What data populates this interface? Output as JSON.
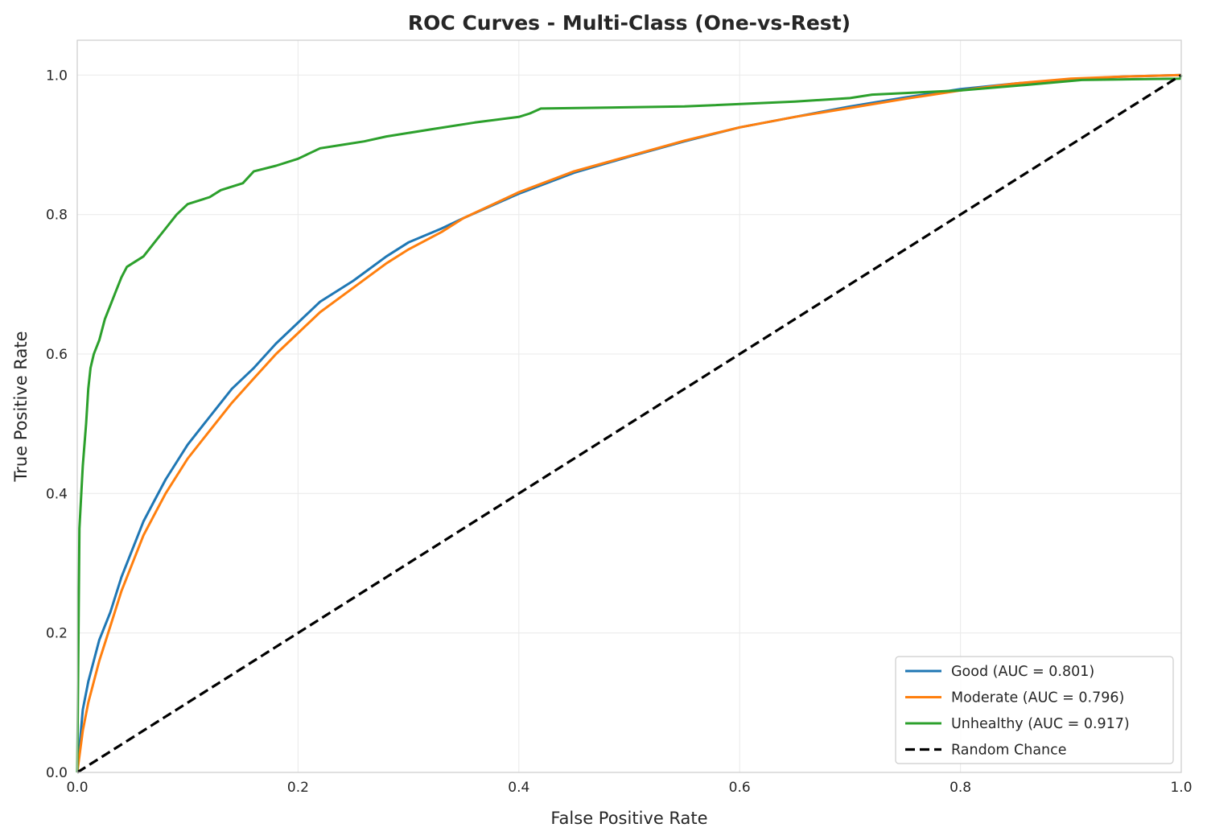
{
  "chart_data": {
    "type": "line",
    "title": "ROC Curves - Multi-Class (One-vs-Rest)",
    "xlabel": "False Positive Rate",
    "ylabel": "True Positive Rate",
    "xlim": [
      0.0,
      1.0
    ],
    "ylim": [
      0.0,
      1.05
    ],
    "xticks": [
      "0.0",
      "0.2",
      "0.4",
      "0.6",
      "0.8",
      "1.0"
    ],
    "yticks": [
      "0.0",
      "0.2",
      "0.4",
      "0.6",
      "0.8",
      "1.0"
    ],
    "grid": true,
    "legend_position": "lower-right",
    "series": [
      {
        "name": "Good (AUC = 0.801)",
        "color": "#1f77b4",
        "style": "solid",
        "x": [
          0,
          0.005,
          0.01,
          0.02,
          0.03,
          0.04,
          0.05,
          0.06,
          0.07,
          0.08,
          0.1,
          0.12,
          0.14,
          0.16,
          0.18,
          0.2,
          0.22,
          0.25,
          0.28,
          0.3,
          0.33,
          0.35,
          0.4,
          0.45,
          0.5,
          0.55,
          0.6,
          0.65,
          0.7,
          0.75,
          0.8,
          0.85,
          0.9,
          0.95,
          1.0
        ],
        "y": [
          0,
          0.09,
          0.13,
          0.19,
          0.23,
          0.28,
          0.32,
          0.36,
          0.39,
          0.42,
          0.47,
          0.51,
          0.55,
          0.58,
          0.615,
          0.645,
          0.675,
          0.705,
          0.74,
          0.76,
          0.78,
          0.795,
          0.83,
          0.86,
          0.883,
          0.905,
          0.925,
          0.94,
          0.955,
          0.968,
          0.98,
          0.988,
          0.994,
          0.998,
          1.0
        ]
      },
      {
        "name": "Moderate (AUC = 0.796)",
        "color": "#ff7f0e",
        "style": "solid",
        "x": [
          0,
          0.005,
          0.01,
          0.02,
          0.03,
          0.04,
          0.05,
          0.06,
          0.07,
          0.08,
          0.1,
          0.12,
          0.14,
          0.16,
          0.18,
          0.2,
          0.22,
          0.25,
          0.28,
          0.3,
          0.33,
          0.35,
          0.4,
          0.45,
          0.5,
          0.55,
          0.6,
          0.65,
          0.7,
          0.75,
          0.8,
          0.85,
          0.9,
          0.95,
          1.0
        ],
        "y": [
          0,
          0.06,
          0.1,
          0.16,
          0.21,
          0.26,
          0.3,
          0.34,
          0.37,
          0.4,
          0.45,
          0.49,
          0.53,
          0.565,
          0.6,
          0.63,
          0.66,
          0.695,
          0.73,
          0.75,
          0.775,
          0.795,
          0.832,
          0.862,
          0.884,
          0.906,
          0.925,
          0.94,
          0.953,
          0.966,
          0.978,
          0.988,
          0.995,
          0.998,
          1.0
        ]
      },
      {
        "name": "Unhealthy (AUC = 0.917)",
        "color": "#2ca02c",
        "style": "solid",
        "x": [
          0,
          0.002,
          0.005,
          0.008,
          0.01,
          0.012,
          0.015,
          0.02,
          0.025,
          0.03,
          0.035,
          0.04,
          0.045,
          0.05,
          0.06,
          0.07,
          0.08,
          0.09,
          0.1,
          0.12,
          0.13,
          0.15,
          0.16,
          0.18,
          0.2,
          0.22,
          0.24,
          0.26,
          0.28,
          0.32,
          0.36,
          0.4,
          0.41,
          0.42,
          0.55,
          0.65,
          0.7,
          0.72,
          0.8,
          0.86,
          0.91,
          0.999,
          1.0
        ],
        "y": [
          0,
          0.35,
          0.44,
          0.5,
          0.55,
          0.58,
          0.6,
          0.62,
          0.65,
          0.67,
          0.69,
          0.71,
          0.725,
          0.73,
          0.74,
          0.76,
          0.78,
          0.8,
          0.815,
          0.825,
          0.835,
          0.845,
          0.862,
          0.87,
          0.88,
          0.895,
          0.9,
          0.905,
          0.912,
          0.922,
          0.932,
          0.94,
          0.945,
          0.952,
          0.955,
          0.962,
          0.967,
          0.972,
          0.978,
          0.986,
          0.993,
          0.995,
          1.0
        ]
      },
      {
        "name": "Random Chance",
        "color": "#000000",
        "style": "dashed",
        "x": [
          0,
          1
        ],
        "y": [
          0,
          1
        ]
      }
    ]
  }
}
